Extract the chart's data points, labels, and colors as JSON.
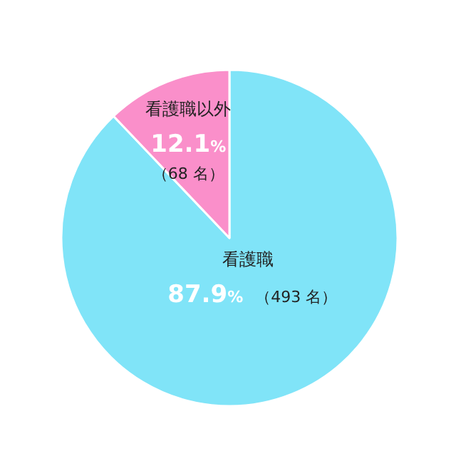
{
  "chart_data": {
    "type": "pie",
    "categories": [
      "看護職",
      "看護職以外"
    ],
    "values": [
      87.9,
      12.1
    ],
    "colors": [
      "#80e4f8",
      "#fa8fca"
    ],
    "value_labels": [
      "87.9%",
      "12.1%"
    ],
    "annotations": [
      {
        "text": "（493 名）",
        "x": "看護職"
      },
      {
        "text": "（68 名）",
        "x": "看護職以外"
      }
    ]
  }
}
